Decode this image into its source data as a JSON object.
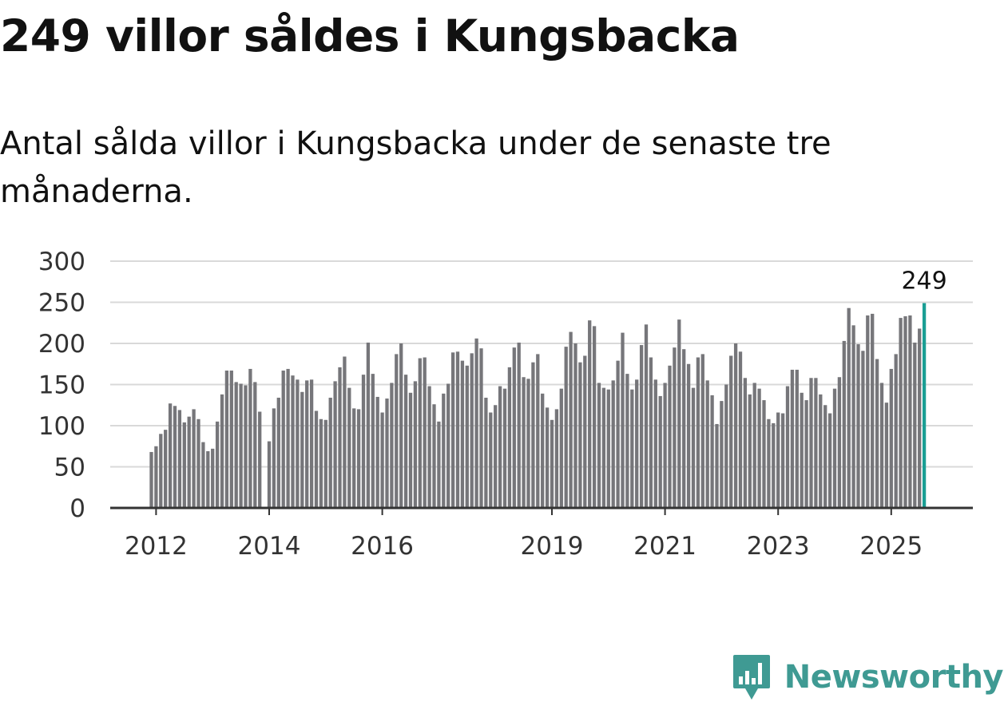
{
  "title": "249 villor såldes i Kungsbacka",
  "subtitle": "Antal sålda villor i Kungsbacka under de senaste tre månaderna.",
  "brand": {
    "name": "Newsworthy",
    "logo_icon": "bar-chart-bubble-icon"
  },
  "colors": {
    "bar": "#76767a",
    "highlight": "#1a9e94",
    "grid": "#d9d9d9",
    "axis": "#333333",
    "brand": "#3f9a93"
  },
  "chart_data": {
    "type": "bar",
    "title": "",
    "xlabel": "",
    "ylabel": "",
    "ylim": [
      0,
      300
    ],
    "yticks": [
      0,
      50,
      100,
      150,
      200,
      250,
      300
    ],
    "xtick_labels": [
      "2012",
      "2014",
      "2016",
      "2019",
      "2021",
      "2023",
      "2025"
    ],
    "x_start": "2011-12",
    "x_end": "2025-08",
    "grid": true,
    "legend": "none",
    "annotation": {
      "label": "249",
      "value": 249
    },
    "values": [
      68,
      75,
      90,
      95,
      127,
      124,
      119,
      104,
      111,
      120,
      108,
      80,
      69,
      72,
      105,
      138,
      167,
      167,
      153,
      151,
      149,
      169,
      153,
      117,
      0,
      81,
      121,
      134,
      167,
      169,
      161,
      156,
      141,
      155,
      156,
      118,
      108,
      107,
      134,
      154,
      171,
      184,
      146,
      121,
      120,
      162,
      201,
      163,
      135,
      116,
      133,
      152,
      187,
      200,
      162,
      140,
      154,
      182,
      183,
      148,
      126,
      105,
      139,
      151,
      189,
      190,
      179,
      173,
      188,
      206,
      194,
      134,
      116,
      125,
      148,
      145,
      171,
      195,
      201,
      159,
      157,
      177,
      187,
      139,
      122,
      107,
      120,
      145,
      196,
      214,
      200,
      177,
      185,
      228,
      221,
      152,
      146,
      144,
      155,
      179,
      213,
      163,
      144,
      156,
      198,
      223,
      183,
      156,
      136,
      152,
      173,
      195,
      229,
      193,
      175,
      146,
      183,
      187,
      155,
      137,
      102,
      130,
      150,
      185,
      200,
      190,
      158,
      138,
      152,
      145,
      131,
      108,
      103,
      116,
      115,
      148,
      168,
      168,
      140,
      131,
      158,
      158,
      138,
      125,
      115,
      145,
      159,
      203,
      243,
      222,
      199,
      191,
      234,
      236,
      181,
      152,
      128,
      169,
      187,
      231,
      233,
      234,
      201,
      218,
      249
    ]
  }
}
